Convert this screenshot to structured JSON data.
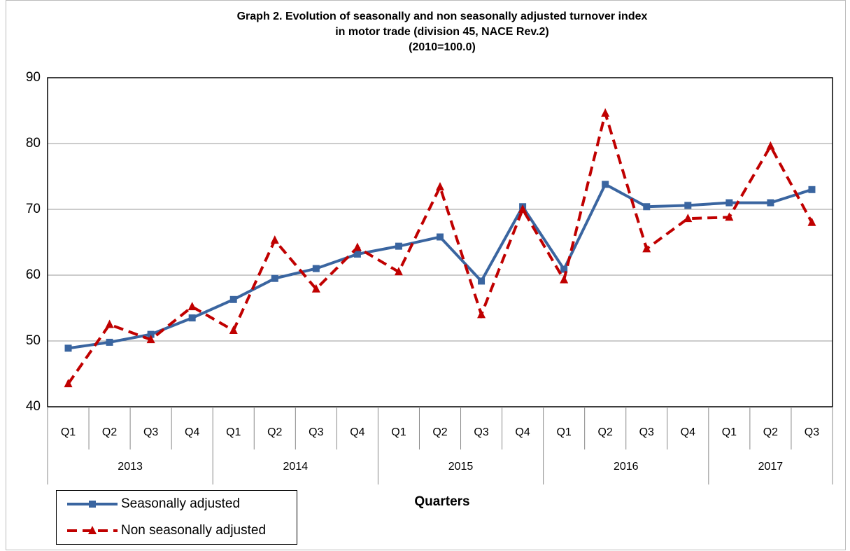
{
  "chart_data": {
    "type": "line",
    "title": [
      "Graph 2. Evolution of seasonally and non seasonally adjusted turnover index",
      "in motor trade (division 45, NACE Rev.2)",
      "(2010=100.0)"
    ],
    "x_label": "Quarters",
    "categories": [
      "Q1",
      "Q2",
      "Q3",
      "Q4",
      "Q1",
      "Q2",
      "Q3",
      "Q4",
      "Q1",
      "Q2",
      "Q3",
      "Q4",
      "Q1",
      "Q2",
      "Q3",
      "Q4",
      "Q1",
      "Q2",
      "Q3"
    ],
    "year_labels": [
      "2013",
      null,
      null,
      null,
      "2014",
      null,
      null,
      null,
      "2015",
      null,
      null,
      null,
      "2016",
      null,
      null,
      null,
      "2017",
      null,
      null
    ],
    "series": [
      {
        "name": "Seasonally adjusted",
        "color": "#3a65a0",
        "marker": "square",
        "dash": false,
        "values": [
          48.9,
          49.8,
          51.0,
          53.5,
          56.3,
          59.5,
          61.0,
          63.2,
          64.4,
          65.8,
          59.1,
          70.4,
          60.9,
          73.8,
          70.4,
          70.6,
          71.0,
          71.0,
          73.0
        ]
      },
      {
        "name": "Non seasonally adjusted",
        "color": "#c00000",
        "marker": "triangle",
        "dash": true,
        "values": [
          43.5,
          52.5,
          50.2,
          55.2,
          51.6,
          65.3,
          57.9,
          64.2,
          60.5,
          73.4,
          54.0,
          70.0,
          59.3,
          84.6,
          64.0,
          68.6,
          68.8,
          79.6,
          68.0
        ]
      }
    ],
    "ylim": [
      40,
      90
    ],
    "yticks": [
      40,
      50,
      60,
      70,
      80,
      90
    ],
    "grid": true
  }
}
